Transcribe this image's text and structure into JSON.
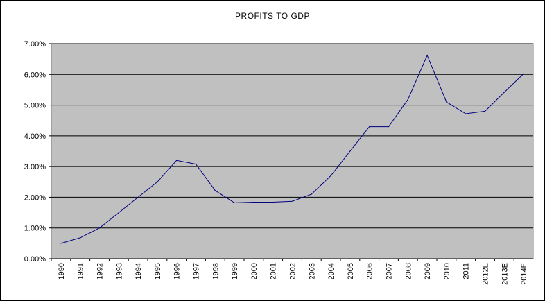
{
  "chart_data": {
    "type": "line",
    "title": "PROFITS TO GDP",
    "xlabel": "",
    "ylabel": "",
    "categories": [
      "1990",
      "1991",
      "1992",
      "1993",
      "1994",
      "1995",
      "1996",
      "1997",
      "1998",
      "1999",
      "2000",
      "2001",
      "2002",
      "2003",
      "2004",
      "2005",
      "2006",
      "2007",
      "2008",
      "2009",
      "2010",
      "2011",
      "2012E",
      "2013E",
      "2014E"
    ],
    "series": [
      {
        "values": [
          0.5,
          0.68,
          1.0,
          1.5,
          2.0,
          2.5,
          3.2,
          3.08,
          2.22,
          1.82,
          1.84,
          1.84,
          1.87,
          2.1,
          2.7,
          3.5,
          4.3,
          4.3,
          5.18,
          6.62,
          5.1,
          4.72,
          4.8,
          5.42,
          6.02
        ]
      }
    ],
    "ylim": [
      0,
      7
    ],
    "y_ticks": [
      "0.00%",
      "1.00%",
      "2.00%",
      "3.00%",
      "4.00%",
      "5.00%",
      "6.00%",
      "7.00%"
    ],
    "grid": "horizontal",
    "plot_background": "#c0c0c0",
    "line_color": "#000080"
  }
}
